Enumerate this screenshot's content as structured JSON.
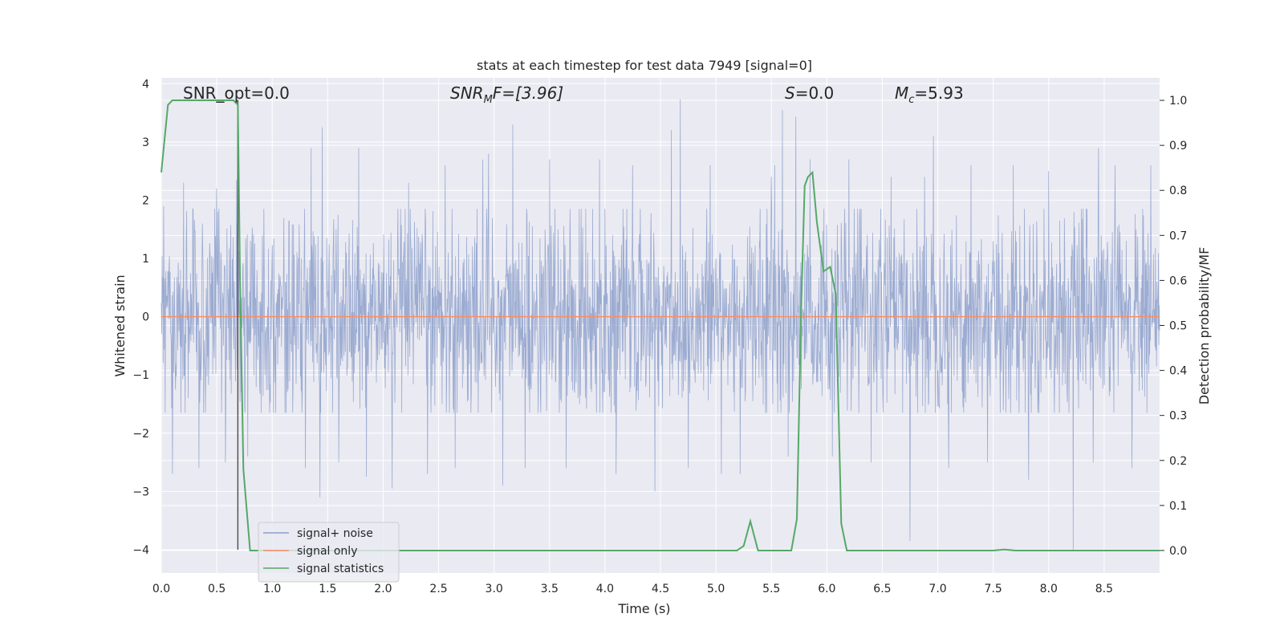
{
  "chart_data": {
    "type": "line",
    "title": "stats at each timestep for test data 7949 [signal=0]",
    "xlabel": "Time (s)",
    "ylabel": "Whitened strain",
    "y2label": "Detection probability/MF",
    "xlim": [
      0.0,
      9.0
    ],
    "ylim": [
      -4.4,
      4.1
    ],
    "y2lim": [
      -0.05,
      1.05
    ],
    "xticks": [
      "0.0",
      "0.5",
      "1.0",
      "1.5",
      "2.0",
      "2.5",
      "3.0",
      "3.5",
      "4.0",
      "4.5",
      "5.0",
      "5.5",
      "6.0",
      "6.5",
      "7.0",
      "7.5",
      "8.0",
      "8.5"
    ],
    "yticks": [
      "4",
      "3",
      "2",
      "1",
      "0",
      "−1",
      "−2",
      "−3",
      "−4"
    ],
    "y2ticks": [
      "1.0",
      "0.9",
      "0.8",
      "0.7",
      "0.6",
      "0.5",
      "0.4",
      "0.3",
      "0.2",
      "0.1",
      "0.0"
    ],
    "grid": true,
    "background": "#eaeaf2",
    "annotations": {
      "snr_opt": "SNR_opt=0.0",
      "snr_mf_main": "SNR",
      "snr_mf_sub": "M",
      "snr_mf_rest": "F=[3.96]",
      "s_var": "S",
      "s_rest": "=0.0",
      "mc_var": "M",
      "mc_sub": "c",
      "mc_rest": "=5.93"
    },
    "vline_x": 0.69,
    "legend": {
      "placement": "lower-left",
      "entries": [
        "signal+ noise",
        "signal only",
        "signal statistics"
      ]
    },
    "series": [
      {
        "name": "signal+ noise",
        "color": "#8da0cb",
        "kind": "noise",
        "envelope": [
          1.85,
          -1.65
        ],
        "spikes": [
          [
            0.02,
            1.9
          ],
          [
            0.1,
            -2.7
          ],
          [
            0.2,
            2.3
          ],
          [
            0.34,
            -2.6
          ],
          [
            0.5,
            2.2
          ],
          [
            0.58,
            -2.5
          ],
          [
            0.68,
            2.35
          ],
          [
            0.78,
            -2.4
          ],
          [
            1.3,
            -2.6
          ],
          [
            1.35,
            2.9
          ],
          [
            1.43,
            -3.1
          ],
          [
            1.45,
            3.25
          ],
          [
            1.6,
            -2.5
          ],
          [
            1.78,
            2.9
          ],
          [
            1.85,
            -2.75
          ],
          [
            2.08,
            -2.95
          ],
          [
            2.23,
            2.3
          ],
          [
            2.4,
            -2.7
          ],
          [
            2.56,
            2.6
          ],
          [
            2.65,
            -2.6
          ],
          [
            2.9,
            2.7
          ],
          [
            2.95,
            2.8
          ],
          [
            3.08,
            -2.9
          ],
          [
            3.17,
            3.3
          ],
          [
            3.28,
            -2.6
          ],
          [
            3.5,
            2.7
          ],
          [
            3.65,
            -2.6
          ],
          [
            3.95,
            2.7
          ],
          [
            4.1,
            -2.7
          ],
          [
            4.25,
            2.6
          ],
          [
            4.45,
            -3.0
          ],
          [
            4.6,
            3.2
          ],
          [
            4.68,
            3.73
          ],
          [
            4.75,
            -2.6
          ],
          [
            4.95,
            2.6
          ],
          [
            5.05,
            -2.7
          ],
          [
            5.22,
            -2.7
          ],
          [
            5.5,
            2.4
          ],
          [
            5.53,
            2.6
          ],
          [
            5.6,
            3.55
          ],
          [
            5.65,
            -2.4
          ],
          [
            5.72,
            3.43
          ],
          [
            5.85,
            2.7
          ],
          [
            6.05,
            -2.4
          ],
          [
            6.2,
            2.7
          ],
          [
            6.4,
            -2.5
          ],
          [
            6.58,
            2.4
          ],
          [
            6.75,
            -3.85
          ],
          [
            6.88,
            2.4
          ],
          [
            6.96,
            3.1
          ],
          [
            7.1,
            -2.6
          ],
          [
            7.3,
            2.6
          ],
          [
            7.45,
            -2.5
          ],
          [
            7.68,
            2.6
          ],
          [
            7.82,
            -2.8
          ],
          [
            8.0,
            2.5
          ],
          [
            8.22,
            -4.0
          ],
          [
            8.4,
            -2.5
          ],
          [
            8.45,
            2.9
          ],
          [
            8.6,
            2.6
          ],
          [
            8.75,
            -2.6
          ],
          [
            8.92,
            2.6
          ]
        ]
      },
      {
        "name": "signal only",
        "color": "#fc8d62",
        "kind": "flat",
        "value": 0.0
      },
      {
        "name": "signal statistics",
        "color": "#55a868",
        "kind": "line",
        "x": [
          0.0,
          0.06,
          0.1,
          0.15,
          0.2,
          0.3,
          0.4,
          0.5,
          0.6,
          0.65,
          0.69,
          0.71,
          0.74,
          0.8,
          1.0,
          2.0,
          3.0,
          4.0,
          5.0,
          5.19,
          5.25,
          5.31,
          5.38,
          5.5,
          5.68,
          5.73,
          5.77,
          5.8,
          5.83,
          5.87,
          5.91,
          5.97,
          6.03,
          6.08,
          6.13,
          6.18,
          6.3,
          7.0,
          7.5,
          7.6,
          7.7,
          8.0,
          8.5,
          9.0
        ],
        "y": [
          0.84,
          0.99,
          1.0,
          1.0,
          1.0,
          1.0,
          1.0,
          1.0,
          1.0,
          1.0,
          0.99,
          0.6,
          0.18,
          0.0,
          0.0,
          0.0,
          0.0,
          0.0,
          0.0,
          0.0,
          0.01,
          0.065,
          0.0,
          0.0,
          0.0,
          0.07,
          0.55,
          0.81,
          0.83,
          0.84,
          0.73,
          0.62,
          0.63,
          0.57,
          0.06,
          0.0,
          0.0,
          0.0,
          0.0,
          0.002,
          0.0,
          0.0,
          0.0,
          0.0
        ]
      }
    ]
  }
}
